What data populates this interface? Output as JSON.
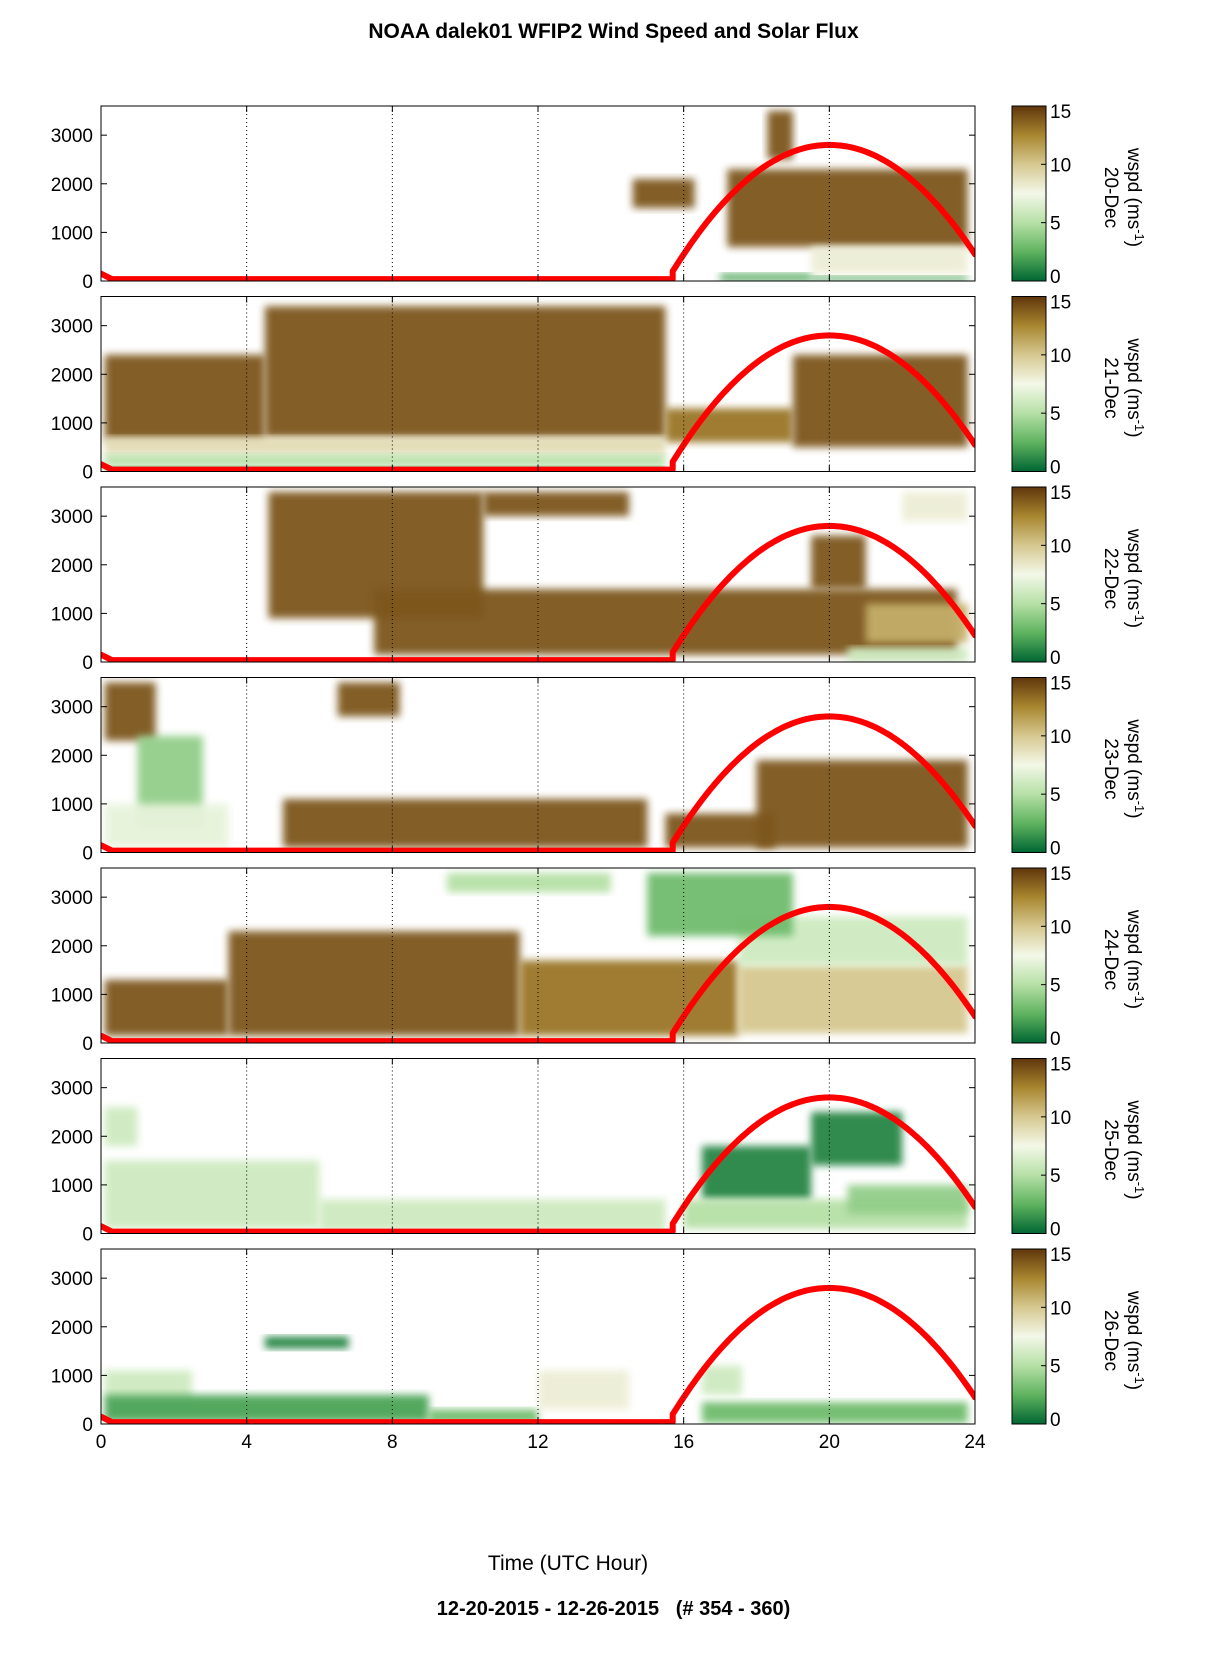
{
  "figure": {
    "title": "NOAA dalek01 WFIP2 Wind Speed and Solar Flux",
    "footer": "12-20-2015 - 12-26-2015   (# 354 - 360)",
    "xlabel": "Time (UTC Hour)"
  },
  "colors": {
    "solar_flux_curve": "#ff0000",
    "colormap": [
      "#006633",
      "#5fb35f",
      "#b6e0a6",
      "#f3f8e8",
      "#d6c890",
      "#a8862f",
      "#60360c"
    ],
    "grid": "#000000"
  },
  "chart_data": {
    "type": "heatmap",
    "panel_count": 7,
    "x_ticks": [
      0,
      4,
      8,
      12,
      16,
      20,
      24
    ],
    "xlim": [
      0,
      24
    ],
    "y_ticks": [
      0,
      1000,
      2000,
      3000
    ],
    "ylim": [
      0,
      3600
    ],
    "colorbar": {
      "label_prefix": "wspd (ms",
      "label_exp": "-1",
      "label_suffix": ")",
      "ticks": [
        0,
        5,
        10,
        15
      ],
      "range": [
        0,
        15
      ]
    },
    "grid": "vertical dotted at 4-hour intervals",
    "solar_flux": {
      "color": "red",
      "sunrise_hour": 15.7,
      "peak_hour": 20,
      "peak_height": 2800,
      "end_hour": 24,
      "end_height": 550
    },
    "panels": [
      {
        "date": "20-Dec",
        "blobs": [
          {
            "x": [
              14.6,
              16.3
            ],
            "y": [
              1500,
              2100
            ],
            "w": 14
          },
          {
            "x": [
              17.2,
              23.8
            ],
            "y": [
              700,
              2300
            ],
            "w": 14
          },
          {
            "x": [
              18.3,
              19.0
            ],
            "y": [
              2500,
              3500
            ],
            "w": 14
          },
          {
            "x": [
              19.5,
              23.8
            ],
            "y": [
              150,
              700
            ],
            "w": 8
          },
          {
            "x": [
              17.0,
              19.5
            ],
            "y": [
              0,
              150
            ],
            "w": 2
          },
          {
            "x": [
              19.5,
              23.8
            ],
            "y": [
              0,
              100
            ],
            "w": 2
          }
        ]
      },
      {
        "date": "21-Dec",
        "blobs": [
          {
            "x": [
              0.1,
              4.5
            ],
            "y": [
              650,
              2400
            ],
            "w": 14
          },
          {
            "x": [
              4.5,
              15.5
            ],
            "y": [
              700,
              3400
            ],
            "w": 14
          },
          {
            "x": [
              15.5,
              19.0
            ],
            "y": [
              600,
              1300
            ],
            "w": 13
          },
          {
            "x": [
              19.0,
              23.8
            ],
            "y": [
              500,
              2400
            ],
            "w": 14
          },
          {
            "x": [
              0.1,
              15.5
            ],
            "y": [
              350,
              700
            ],
            "w": 9
          },
          {
            "x": [
              0.1,
              15.5
            ],
            "y": [
              100,
              350
            ],
            "w": 5
          },
          {
            "x": [
              0.1,
              15.5
            ],
            "y": [
              0,
              100
            ],
            "w": 2
          }
        ]
      },
      {
        "date": "22-Dec",
        "blobs": [
          {
            "x": [
              4.6,
              10.5
            ],
            "y": [
              900,
              3500
            ],
            "w": 14
          },
          {
            "x": [
              10.5,
              14.5
            ],
            "y": [
              3000,
              3500
            ],
            "w": 14
          },
          {
            "x": [
              7.5,
              23.5
            ],
            "y": [
              150,
              1500
            ],
            "w": 14
          },
          {
            "x": [
              19.5,
              21.0
            ],
            "y": [
              1500,
              2600
            ],
            "w": 14
          },
          {
            "x": [
              21.0,
              23.8
            ],
            "y": [
              400,
              1200
            ],
            "w": 11
          },
          {
            "x": [
              22.0,
              23.8
            ],
            "y": [
              2900,
              3500
            ],
            "w": 8
          },
          {
            "x": [
              20.5,
              23.8
            ],
            "y": [
              0,
              300
            ],
            "w": 6
          }
        ]
      },
      {
        "date": "23-Dec",
        "blobs": [
          {
            "x": [
              0.1,
              1.5
            ],
            "y": [
              2300,
              3500
            ],
            "w": 14
          },
          {
            "x": [
              1.0,
              2.8
            ],
            "y": [
              500,
              2400
            ],
            "w": 4
          },
          {
            "x": [
              0.1,
              3.5
            ],
            "y": [
              100,
              1000
            ],
            "w": 7
          },
          {
            "x": [
              5.0,
              15.0
            ],
            "y": [
              100,
              1100
            ],
            "w": 14
          },
          {
            "x": [
              15.5,
              18.5
            ],
            "y": [
              100,
              800
            ],
            "w": 14
          },
          {
            "x": [
              18.0,
              23.8
            ],
            "y": [
              100,
              1900
            ],
            "w": 14
          },
          {
            "x": [
              6.5,
              8.2
            ],
            "y": [
              2800,
              3500
            ],
            "w": 14
          }
        ]
      },
      {
        "date": "24-Dec",
        "blobs": [
          {
            "x": [
              0.1,
              3.5
            ],
            "y": [
              150,
              1300
            ],
            "w": 14
          },
          {
            "x": [
              3.5,
              11.5
            ],
            "y": [
              150,
              2300
            ],
            "w": 14
          },
          {
            "x": [
              11.5,
              17.5
            ],
            "y": [
              150,
              1700
            ],
            "w": 13
          },
          {
            "x": [
              17.5,
              23.8
            ],
            "y": [
              200,
              1600
            ],
            "w": 10
          },
          {
            "x": [
              17.5,
              23.8
            ],
            "y": [
              1600,
              2600
            ],
            "w": 6
          },
          {
            "x": [
              15.0,
              19.0
            ],
            "y": [
              2200,
              3500
            ],
            "w": 3
          },
          {
            "x": [
              9.5,
              14.0
            ],
            "y": [
              3100,
              3500
            ],
            "w": 5
          }
        ]
      },
      {
        "date": "25-Dec",
        "blobs": [
          {
            "x": [
              0.1,
              6.0
            ],
            "y": [
              100,
              1500
            ],
            "w": 6
          },
          {
            "x": [
              6.0,
              15.5
            ],
            "y": [
              50,
              700
            ],
            "w": 6
          },
          {
            "x": [
              0.1,
              1.0
            ],
            "y": [
              1800,
              2600
            ],
            "w": 6
          },
          {
            "x": [
              16.5,
              19.5
            ],
            "y": [
              700,
              1800
            ],
            "w": 1
          },
          {
            "x": [
              19.5,
              22.0
            ],
            "y": [
              1400,
              2500
            ],
            "w": 1
          },
          {
            "x": [
              16.0,
              23.8
            ],
            "y": [
              100,
              700
            ],
            "w": 5
          },
          {
            "x": [
              20.5,
              23.8
            ],
            "y": [
              400,
              1000
            ],
            "w": 4
          }
        ]
      },
      {
        "date": "26-Dec",
        "blobs": [
          {
            "x": [
              0.1,
              2.5
            ],
            "y": [
              500,
              1100
            ],
            "w": 6
          },
          {
            "x": [
              0.1,
              9.0
            ],
            "y": [
              50,
              600
            ],
            "w": 2
          },
          {
            "x": [
              9.0,
              12.0
            ],
            "y": [
              20,
              300
            ],
            "w": 3
          },
          {
            "x": [
              12.0,
              14.5
            ],
            "y": [
              300,
              1100
            ],
            "w": 8
          },
          {
            "x": [
              4.5,
              6.8
            ],
            "y": [
              1550,
              1800
            ],
            "w": 1
          },
          {
            "x": [
              16.5,
              23.8
            ],
            "y": [
              20,
              450
            ],
            "w": 3
          },
          {
            "x": [
              16.5,
              17.6
            ],
            "y": [
              600,
              1200
            ],
            "w": 6
          }
        ]
      }
    ]
  }
}
